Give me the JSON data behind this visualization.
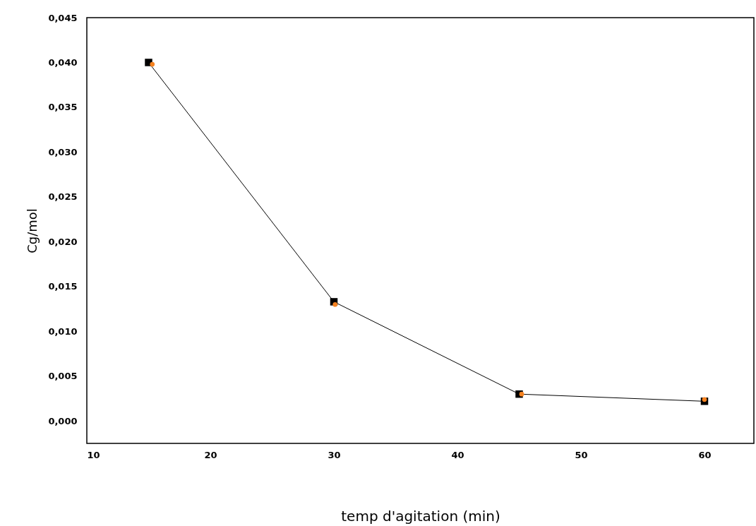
{
  "chart_data": {
    "type": "line",
    "xlabel": "temp d'agitation (min)",
    "ylabel": "Cg/mol",
    "xlim": [
      10,
      64
    ],
    "xticks": [
      10,
      20,
      30,
      40,
      50,
      60
    ],
    "ylim": [
      -0.0025,
      0.045
    ],
    "yticks": [
      {
        "value": 0,
        "label": "0,000"
      },
      {
        "value": 0.005,
        "label": "0,005"
      },
      {
        "value": 0.01,
        "label": "0,010"
      },
      {
        "value": 0.015,
        "label": "0,015"
      },
      {
        "value": 0.02,
        "label": "0,020"
      },
      {
        "value": 0.025,
        "label": "0,025"
      },
      {
        "value": 0.03,
        "label": "0,030"
      },
      {
        "value": 0.035,
        "label": "0,035"
      },
      {
        "value": 0.04,
        "label": "0,040"
      },
      {
        "value": 0.045,
        "label": "0,045"
      }
    ],
    "grid": false,
    "series": [
      {
        "color": "#000000",
        "marker": "square",
        "x": [
          15,
          30,
          45,
          60
        ],
        "values": [
          0.04,
          0.0133,
          0.003,
          0.0022
        ]
      },
      {
        "type": "scatter",
        "color": "#f58220",
        "marker": "circle",
        "x": [
          15.3,
          30.1,
          45.2,
          60
        ],
        "values": [
          0.0398,
          0.013,
          0.003,
          0.0024
        ]
      }
    ]
  }
}
